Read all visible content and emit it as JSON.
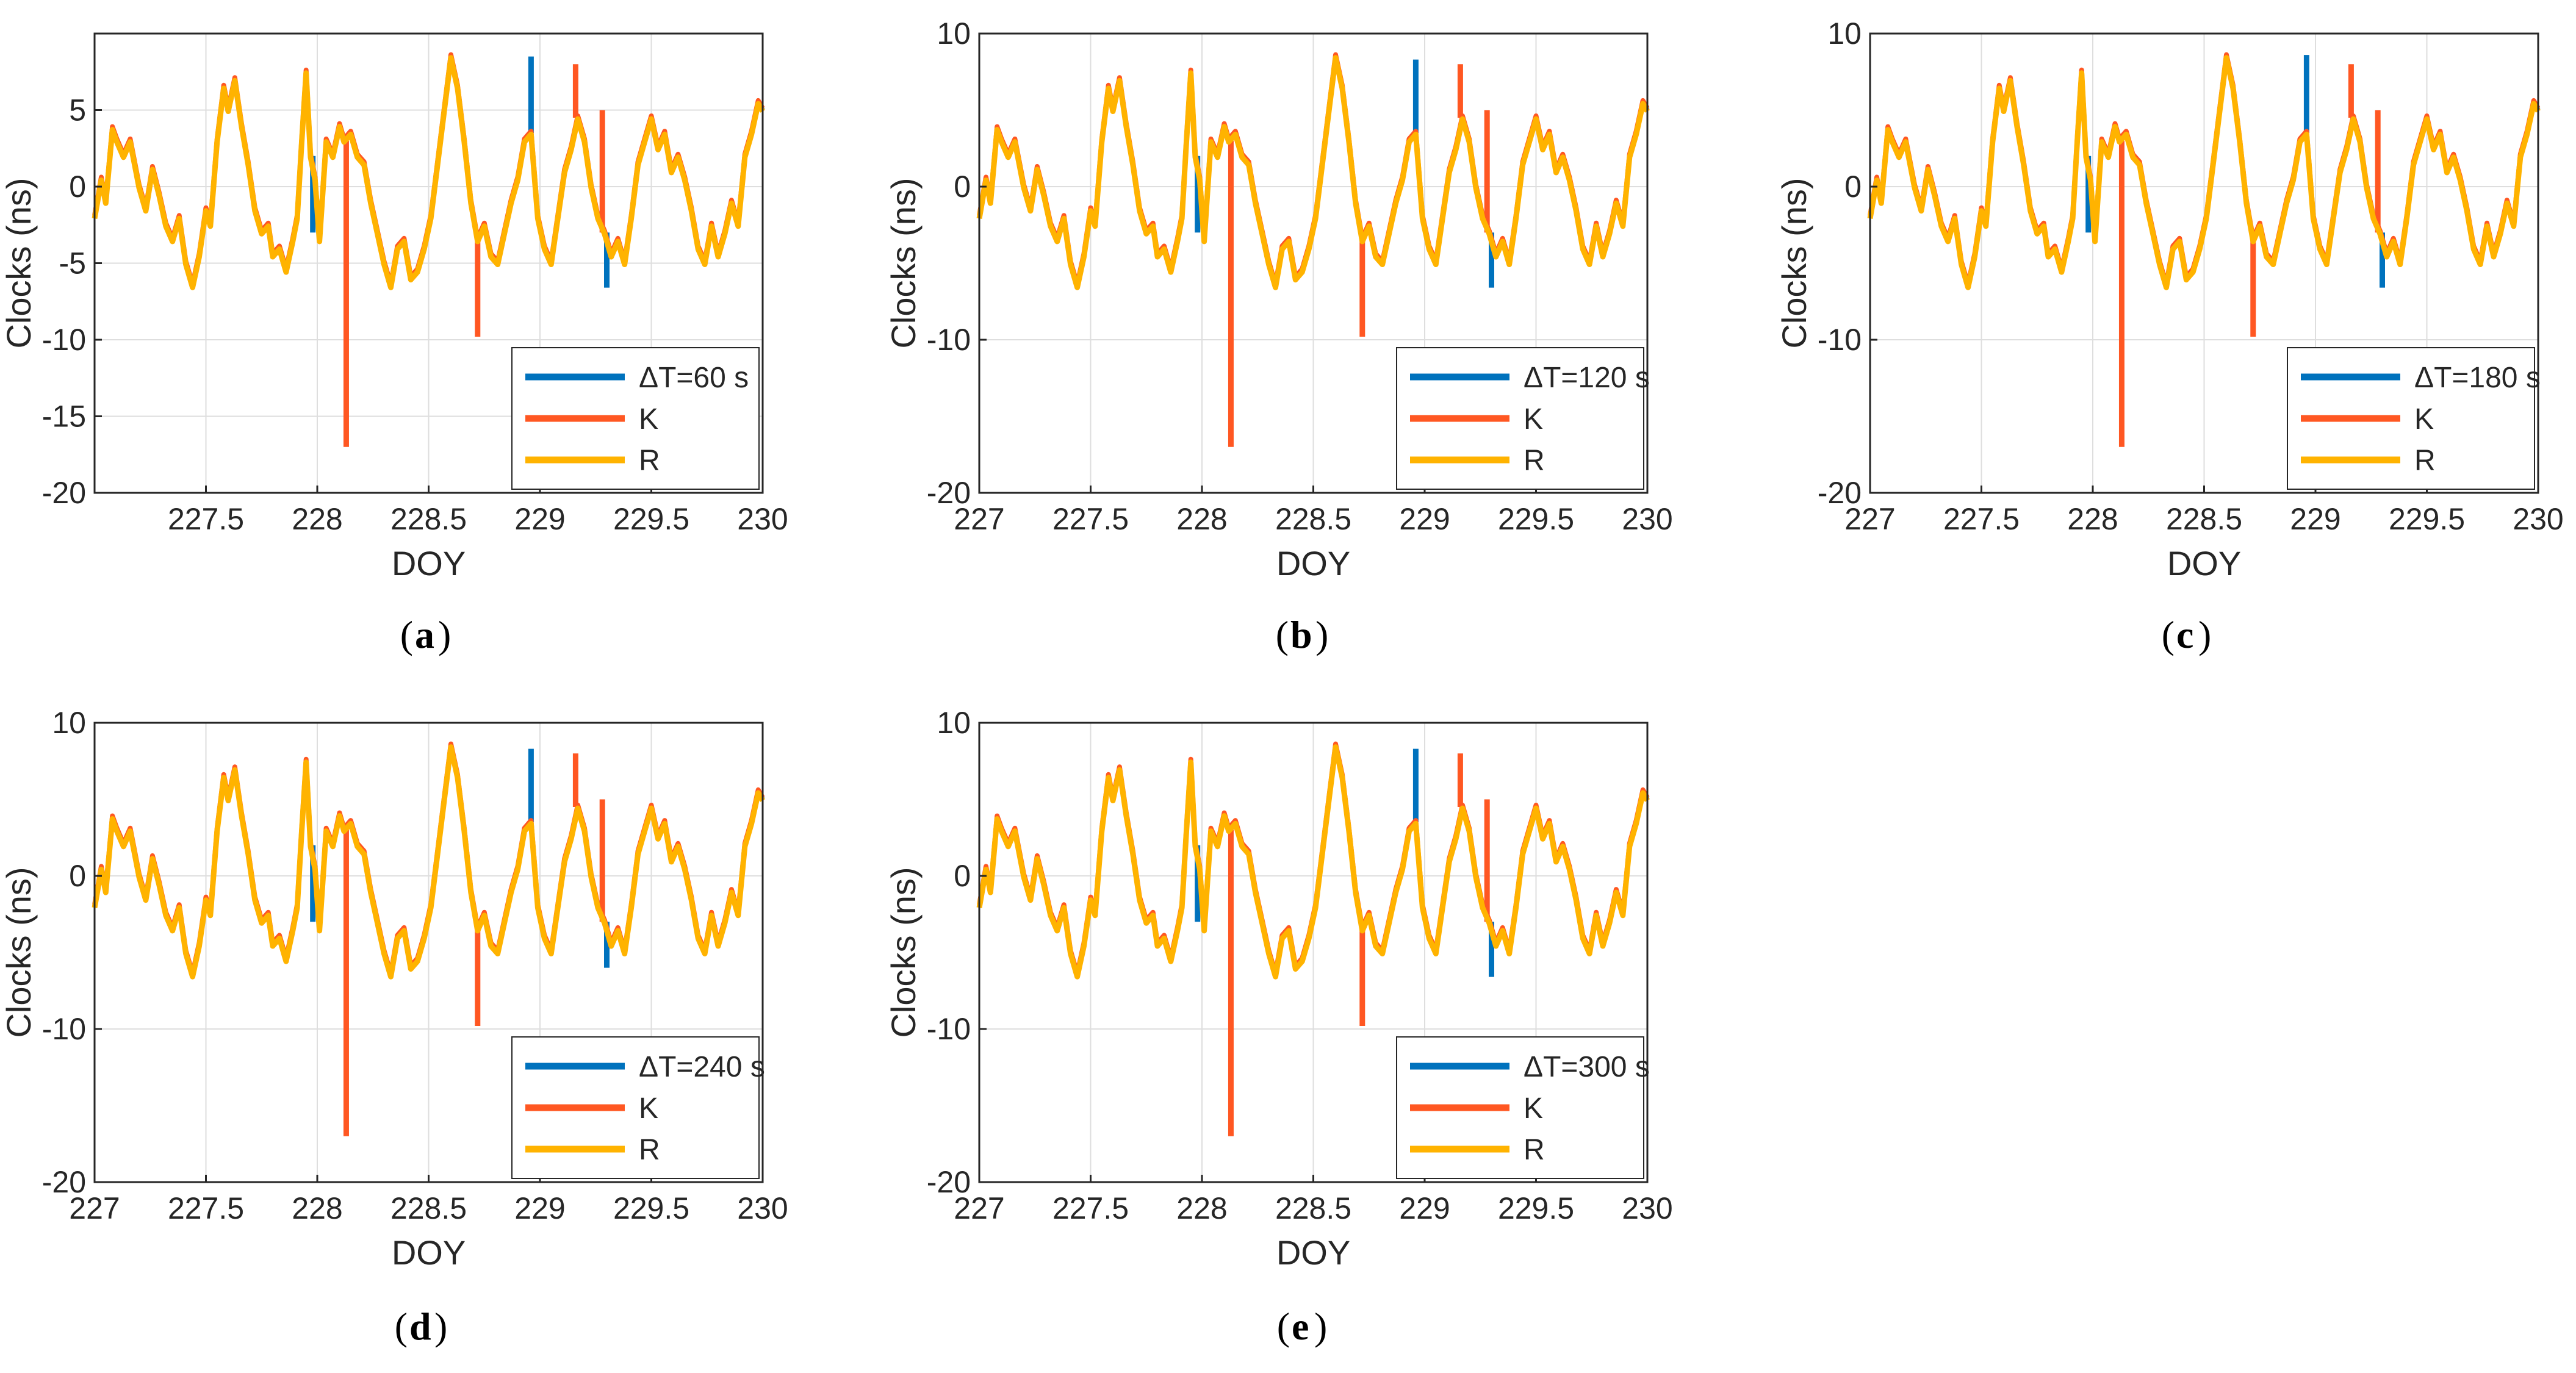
{
  "colors": {
    "dt_series": "#0072BD",
    "k_series": "#ff5722",
    "r_series": "#ffb300",
    "axis": "#262626",
    "grid": "#dedede"
  },
  "chart_data": [
    {
      "type": "line",
      "panel_label": "a",
      "xlabel": "DOY",
      "ylabel": "Clocks (ns)",
      "xlim": [
        227.0,
        230.0
      ],
      "ylim": [
        -20,
        10
      ],
      "xticks": [
        227.5,
        228,
        228.5,
        229,
        229.5,
        230
      ],
      "xtick_labels": [
        "227.5",
        "228",
        "228.5",
        "229",
        "229.5",
        "230"
      ],
      "yticks": [
        5,
        0,
        -5,
        -10,
        -15,
        -20
      ],
      "ytick_labels": [
        "5",
        "0",
        "-5",
        "-10",
        "-15",
        "-20"
      ],
      "grid": true,
      "legend_position": "bottom-right",
      "legend": [
        "ΔT=60 s",
        "K",
        "R"
      ],
      "series": [
        {
          "name": "ΔT=60 s",
          "color_key": "dt_series",
          "spikes": [
            [
              227.98,
              -3.0
            ],
            [
              228.96,
              8.5
            ],
            [
              229.3,
              -6.6
            ]
          ]
        },
        {
          "name": "K",
          "color_key": "k_series",
          "spikes": [
            [
              228.13,
              -17.0
            ],
            [
              228.72,
              -9.8
            ],
            [
              229.16,
              8.0
            ],
            [
              229.28,
              5.0
            ]
          ]
        },
        {
          "name": "R",
          "color_key": "r_series",
          "spikes": []
        }
      ]
    },
    {
      "type": "line",
      "panel_label": "b",
      "xlabel": "DOY",
      "ylabel": "Clocks (ns)",
      "xlim": [
        227.0,
        230.0
      ],
      "ylim": [
        -20,
        10
      ],
      "xticks": [
        227,
        227.5,
        228,
        228.5,
        229,
        229.5,
        230
      ],
      "xtick_labels": [
        "227",
        "227.5",
        "228",
        "228.5",
        "229",
        "229.5",
        "230"
      ],
      "yticks": [
        10,
        0,
        -10,
        -20
      ],
      "ytick_labels": [
        "10",
        "0",
        "-10",
        "-20"
      ],
      "grid": true,
      "legend_position": "bottom-right",
      "legend": [
        "ΔT=120 s",
        "K",
        "R"
      ],
      "series": [
        {
          "name": "ΔT=120 s",
          "color_key": "dt_series",
          "spikes": [
            [
              227.98,
              -3.0
            ],
            [
              228.96,
              8.3
            ],
            [
              229.3,
              -6.6
            ]
          ]
        },
        {
          "name": "K",
          "color_key": "k_series",
          "spikes": [
            [
              228.13,
              -17.0
            ],
            [
              228.72,
              -9.8
            ],
            [
              229.16,
              8.0
            ],
            [
              229.28,
              5.0
            ]
          ]
        },
        {
          "name": "R",
          "color_key": "r_series",
          "spikes": []
        }
      ]
    },
    {
      "type": "line",
      "panel_label": "c",
      "xlabel": "DOY",
      "ylabel": "Clocks (ns)",
      "xlim": [
        227.0,
        230.0
      ],
      "ylim": [
        -20,
        10
      ],
      "xticks": [
        227,
        227.5,
        228,
        228.5,
        229,
        229.5,
        230
      ],
      "xtick_labels": [
        "227",
        "227.5",
        "228",
        "228.5",
        "229",
        "229.5",
        "230"
      ],
      "yticks": [
        10,
        0,
        -10,
        -20
      ],
      "ytick_labels": [
        "10",
        "0",
        "-10",
        "-20"
      ],
      "grid": true,
      "legend_position": "bottom-right",
      "legend": [
        "ΔT=180 s",
        "K",
        "R"
      ],
      "series": [
        {
          "name": "ΔT=180 s",
          "color_key": "dt_series",
          "spikes": [
            [
              227.98,
              -3.0
            ],
            [
              228.96,
              8.6
            ],
            [
              229.3,
              -6.6
            ]
          ]
        },
        {
          "name": "K",
          "color_key": "k_series",
          "spikes": [
            [
              228.13,
              -17.0
            ],
            [
              228.72,
              -9.8
            ],
            [
              229.16,
              8.0
            ],
            [
              229.28,
              5.0
            ]
          ]
        },
        {
          "name": "R",
          "color_key": "r_series",
          "spikes": []
        }
      ]
    },
    {
      "type": "line",
      "panel_label": "d",
      "xlabel": "DOY",
      "ylabel": "Clocks (ns)",
      "xlim": [
        227.0,
        230.0
      ],
      "ylim": [
        -20,
        10
      ],
      "xticks": [
        227,
        227.5,
        228,
        228.5,
        229,
        229.5,
        230
      ],
      "xtick_labels": [
        "227",
        "227.5",
        "228",
        "228.5",
        "229",
        "229.5",
        "230"
      ],
      "yticks": [
        10,
        0,
        -10,
        -20
      ],
      "ytick_labels": [
        "10",
        "0",
        "-10",
        "-20"
      ],
      "grid": true,
      "legend_position": "bottom-right",
      "legend": [
        "ΔT=240 s",
        "K",
        "R"
      ],
      "series": [
        {
          "name": "ΔT=240 s",
          "color_key": "dt_series",
          "spikes": [
            [
              227.98,
              -3.0
            ],
            [
              228.96,
              8.3
            ],
            [
              229.3,
              -6.0
            ]
          ]
        },
        {
          "name": "K",
          "color_key": "k_series",
          "spikes": [
            [
              228.13,
              -17.0
            ],
            [
              228.72,
              -9.8
            ],
            [
              229.16,
              8.0
            ],
            [
              229.28,
              5.0
            ]
          ]
        },
        {
          "name": "R",
          "color_key": "r_series",
          "spikes": []
        }
      ]
    },
    {
      "type": "line",
      "panel_label": "e",
      "xlabel": "DOY",
      "ylabel": "Clocks (ns)",
      "xlim": [
        227.0,
        230.0
      ],
      "ylim": [
        -20,
        10
      ],
      "xticks": [
        227,
        227.5,
        228,
        228.5,
        229,
        229.5,
        230
      ],
      "xtick_labels": [
        "227",
        "227.5",
        "228",
        "228.5",
        "229",
        "229.5",
        "230"
      ],
      "yticks": [
        10,
        0,
        -10,
        -20
      ],
      "ytick_labels": [
        "10",
        "0",
        "-10",
        "-20"
      ],
      "grid": true,
      "legend_position": "bottom-right",
      "legend": [
        "ΔT=300 s",
        "K",
        "R"
      ],
      "series": [
        {
          "name": "ΔT=300 s",
          "color_key": "dt_series",
          "spikes": [
            [
              227.98,
              -3.0
            ],
            [
              228.96,
              8.3
            ],
            [
              229.3,
              -6.6
            ]
          ]
        },
        {
          "name": "K",
          "color_key": "k_series",
          "spikes": [
            [
              228.13,
              -17.0
            ],
            [
              228.72,
              -9.8
            ],
            [
              229.16,
              8.0
            ],
            [
              229.28,
              5.0
            ]
          ]
        },
        {
          "name": "R",
          "color_key": "r_series",
          "spikes": []
        }
      ]
    }
  ],
  "clock_trace": [
    [
      227.0,
      -2.0
    ],
    [
      227.03,
      0.5
    ],
    [
      227.05,
      -1.0
    ],
    [
      227.08,
      3.8
    ],
    [
      227.1,
      3.0
    ],
    [
      227.13,
      2.0
    ],
    [
      227.16,
      3.0
    ],
    [
      227.2,
      0.0
    ],
    [
      227.23,
      -1.5
    ],
    [
      227.26,
      1.2
    ],
    [
      227.29,
      -0.5
    ],
    [
      227.32,
      -2.5
    ],
    [
      227.35,
      -3.5
    ],
    [
      227.38,
      -2.0
    ],
    [
      227.41,
      -5.0
    ],
    [
      227.44,
      -6.5
    ],
    [
      227.47,
      -4.5
    ],
    [
      227.5,
      -1.5
    ],
    [
      227.52,
      -2.5
    ],
    [
      227.55,
      3.0
    ],
    [
      227.58,
      6.5
    ],
    [
      227.6,
      5.0
    ],
    [
      227.63,
      7.0
    ],
    [
      227.66,
      4.0
    ],
    [
      227.69,
      1.5
    ],
    [
      227.72,
      -1.5
    ],
    [
      227.75,
      -3.0
    ],
    [
      227.78,
      -2.5
    ],
    [
      227.8,
      -4.5
    ],
    [
      227.83,
      -4.0
    ],
    [
      227.86,
      -5.5
    ],
    [
      227.89,
      -3.5
    ],
    [
      227.91,
      -2.0
    ],
    [
      227.93,
      3.0
    ],
    [
      227.95,
      7.5
    ],
    [
      227.97,
      2.0
    ],
    [
      227.99,
      0.5
    ],
    [
      228.01,
      -3.5
    ],
    [
      228.04,
      3.0
    ],
    [
      228.07,
      2.0
    ],
    [
      228.1,
      4.0
    ],
    [
      228.12,
      3.0
    ],
    [
      228.15,
      3.5
    ],
    [
      228.18,
      2.0
    ],
    [
      228.21,
      1.5
    ],
    [
      228.24,
      -1.0
    ],
    [
      228.27,
      -3.0
    ],
    [
      228.3,
      -5.0
    ],
    [
      228.33,
      -6.5
    ],
    [
      228.36,
      -4.0
    ],
    [
      228.39,
      -3.5
    ],
    [
      228.42,
      -6.0
    ],
    [
      228.45,
      -5.5
    ],
    [
      228.48,
      -4.0
    ],
    [
      228.51,
      -2.0
    ],
    [
      228.54,
      1.5
    ],
    [
      228.57,
      5.0
    ],
    [
      228.6,
      8.5
    ],
    [
      228.63,
      6.5
    ],
    [
      228.66,
      3.0
    ],
    [
      228.69,
      -1.0
    ],
    [
      228.72,
      -3.5
    ],
    [
      228.75,
      -2.5
    ],
    [
      228.78,
      -4.5
    ],
    [
      228.81,
      -5.0
    ],
    [
      228.84,
      -3.0
    ],
    [
      228.87,
      -1.0
    ],
    [
      228.9,
      0.5
    ],
    [
      228.93,
      3.0
    ],
    [
      228.96,
      3.5
    ],
    [
      228.99,
      -2.0
    ],
    [
      229.02,
      -4.0
    ],
    [
      229.05,
      -5.0
    ],
    [
      229.08,
      -2.0
    ],
    [
      229.11,
      1.0
    ],
    [
      229.14,
      2.5
    ],
    [
      229.17,
      4.5
    ],
    [
      229.2,
      3.0
    ],
    [
      229.23,
      0.0
    ],
    [
      229.26,
      -2.0
    ],
    [
      229.29,
      -3.0
    ],
    [
      229.32,
      -4.5
    ],
    [
      229.35,
      -3.5
    ],
    [
      229.38,
      -5.0
    ],
    [
      229.41,
      -2.0
    ],
    [
      229.44,
      1.5
    ],
    [
      229.47,
      3.0
    ],
    [
      229.5,
      4.5
    ],
    [
      229.53,
      2.5
    ],
    [
      229.56,
      3.5
    ],
    [
      229.59,
      1.0
    ],
    [
      229.62,
      2.0
    ],
    [
      229.65,
      0.5
    ],
    [
      229.68,
      -1.5
    ],
    [
      229.71,
      -4.0
    ],
    [
      229.74,
      -5.0
    ],
    [
      229.77,
      -2.5
    ],
    [
      229.8,
      -4.5
    ],
    [
      229.83,
      -3.0
    ],
    [
      229.86,
      -1.0
    ],
    [
      229.89,
      -2.5
    ],
    [
      229.92,
      2.0
    ],
    [
      229.95,
      3.5
    ],
    [
      229.98,
      5.5
    ],
    [
      230.0,
      5.0
    ]
  ],
  "captions": [
    "(",
    "a",
    "b",
    "c",
    "d",
    "e",
    ")"
  ]
}
